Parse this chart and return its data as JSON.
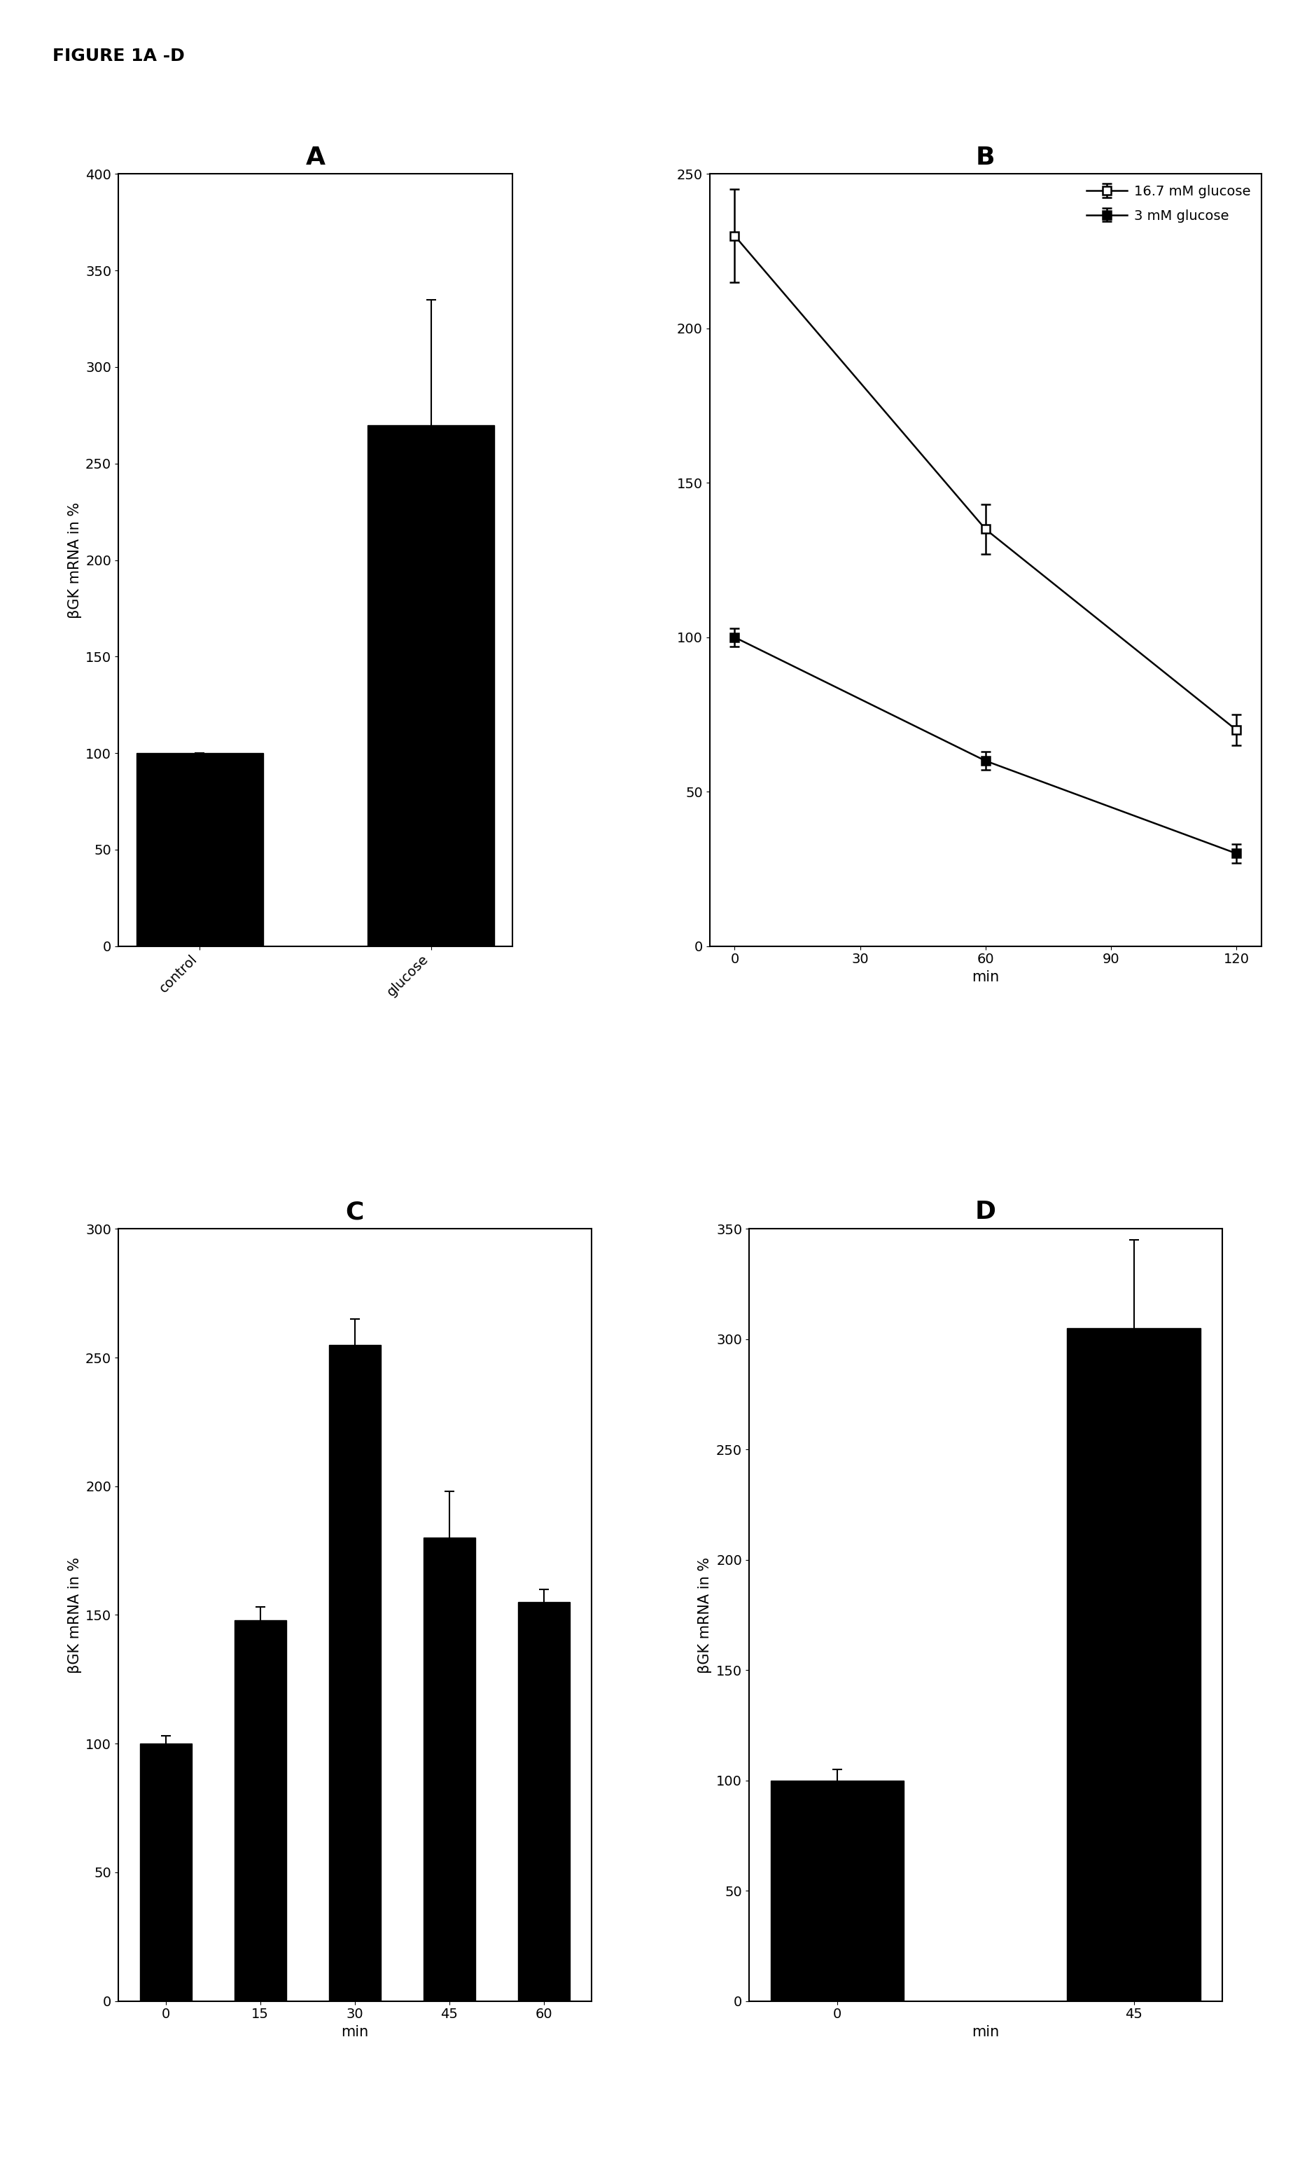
{
  "figure_title": "FIGURE 1A -D",
  "panel_A": {
    "title": "A",
    "categories": [
      "control",
      "glucose"
    ],
    "values": [
      100,
      270
    ],
    "errors": [
      0,
      65
    ],
    "ylabel": "βGK mRNA in %",
    "ylim": [
      0,
      400
    ],
    "yticks": [
      0,
      50,
      100,
      150,
      200,
      250,
      300,
      350,
      400
    ],
    "bar_color": "#000000"
  },
  "panel_B": {
    "title": "B",
    "series": [
      {
        "label": "16.7 mM glucose",
        "x": [
          0,
          60,
          120
        ],
        "y": [
          230,
          135,
          70
        ],
        "yerr": [
          15,
          8,
          5
        ],
        "fillstyle": "none"
      },
      {
        "label": "3 mM glucose",
        "x": [
          0,
          60,
          120
        ],
        "y": [
          100,
          60,
          30
        ],
        "yerr": [
          3,
          3,
          3
        ],
        "fillstyle": "full"
      }
    ],
    "xlabel": "min",
    "ylim": [
      0,
      250
    ],
    "yticks": [
      0,
      50,
      100,
      150,
      200,
      250
    ],
    "xticks": [
      0,
      30,
      60,
      90,
      120
    ]
  },
  "panel_C": {
    "title": "C",
    "cat_labels": [
      "0",
      "15",
      "30",
      "45",
      "60"
    ],
    "values": [
      100,
      148,
      255,
      180,
      155
    ],
    "errors": [
      3,
      5,
      10,
      18,
      5
    ],
    "ylabel": "βGK mRNA in %",
    "xlabel": "min",
    "ylim": [
      0,
      300
    ],
    "yticks": [
      0,
      50,
      100,
      150,
      200,
      250,
      300
    ],
    "bar_color": "#000000"
  },
  "panel_D": {
    "title": "D",
    "cat_labels": [
      "0",
      "45"
    ],
    "values": [
      100,
      305
    ],
    "errors": [
      5,
      40
    ],
    "ylabel": "βGK mRNA in %",
    "xlabel": "min",
    "ylim": [
      0,
      350
    ],
    "yticks": [
      0,
      50,
      100,
      150,
      200,
      250,
      300,
      350
    ],
    "bar_color": "#000000"
  },
  "background_color": "#ffffff",
  "figure_title_fontsize": 18,
  "panel_label_fontsize": 26,
  "axis_label_fontsize": 15,
  "tick_label_fontsize": 14,
  "legend_fontsize": 14
}
